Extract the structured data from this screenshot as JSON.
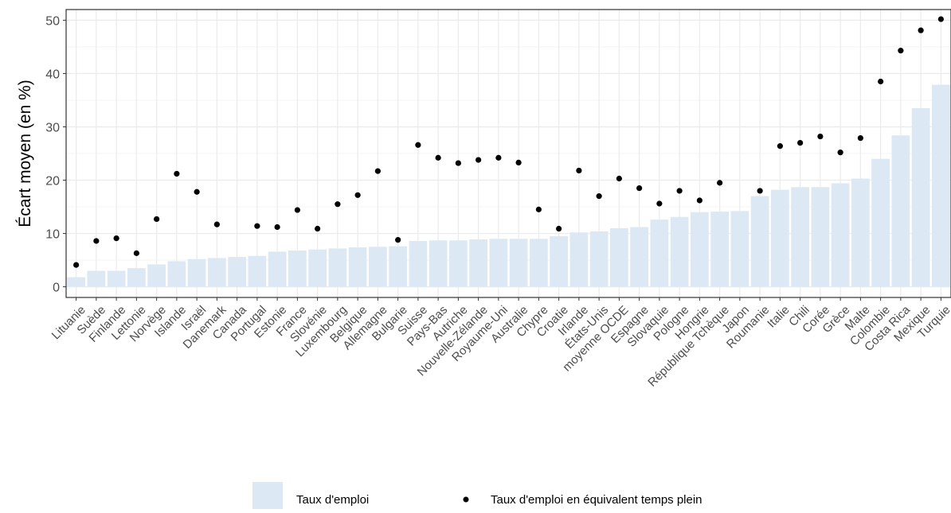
{
  "chart_data": {
    "type": "bar",
    "ylabel": "Écart moyen (en %)",
    "xlabel": "",
    "ylim": [
      -2,
      52
    ],
    "yticks": [
      0,
      10,
      20,
      30,
      40,
      50
    ],
    "grid": true,
    "legend_position": "bottom",
    "categories": [
      "Lituanie",
      "Suède",
      "Finlande",
      "Lettonie",
      "Norvège",
      "Islande",
      "Israël",
      "Danemark",
      "Canada",
      "Portugal",
      "Estonie",
      "France",
      "Slovénie",
      "Luxembourg",
      "Belgique",
      "Allemagne",
      "Bulgarie",
      "Suisse",
      "Pays-Bas",
      "Autriche",
      "Nouvelle-Zélande",
      "Royaume-Uni",
      "Australie",
      "Chypre",
      "Croatie",
      "Irlande",
      "États-Unis",
      "moyenne OCDE",
      "Espagne",
      "Slovaquie",
      "Pologne",
      "Hongrie",
      "République Tchèque",
      "Japon",
      "Roumanie",
      "Italie",
      "Chili",
      "Corée",
      "Grèce",
      "Malte",
      "Colombie",
      "Costa Rica",
      "Mexique",
      "Turquie"
    ],
    "series": [
      {
        "name": "Taux d'emploi",
        "kind": "bar",
        "color": "#dce9f5",
        "values": [
          1.8,
          3.0,
          3.0,
          3.5,
          4.2,
          4.8,
          5.2,
          5.4,
          5.6,
          5.8,
          6.6,
          6.8,
          7.0,
          7.2,
          7.4,
          7.5,
          7.6,
          8.6,
          8.7,
          8.7,
          8.9,
          9.0,
          9.0,
          9.0,
          9.5,
          10.2,
          10.4,
          11.0,
          11.2,
          12.6,
          13.1,
          14.0,
          14.1,
          14.2,
          17.0,
          18.2,
          18.7,
          18.7,
          19.4,
          20.3,
          24.0,
          28.4,
          33.5,
          37.9
        ]
      },
      {
        "name": "Taux d'emploi en équivalent temps plein",
        "kind": "point",
        "color": "#000000",
        "values": [
          4.1,
          8.6,
          9.1,
          6.3,
          12.7,
          21.2,
          17.8,
          11.7,
          null,
          11.4,
          11.2,
          14.4,
          10.9,
          15.5,
          17.2,
          21.7,
          8.8,
          26.6,
          24.2,
          23.2,
          23.8,
          24.2,
          23.3,
          14.5,
          10.9,
          21.8,
          17.0,
          20.3,
          18.5,
          15.6,
          18.0,
          16.2,
          19.5,
          null,
          18.0,
          26.4,
          27.0,
          28.2,
          25.2,
          27.9,
          38.5,
          44.3,
          48.1,
          50.2
        ]
      }
    ]
  }
}
